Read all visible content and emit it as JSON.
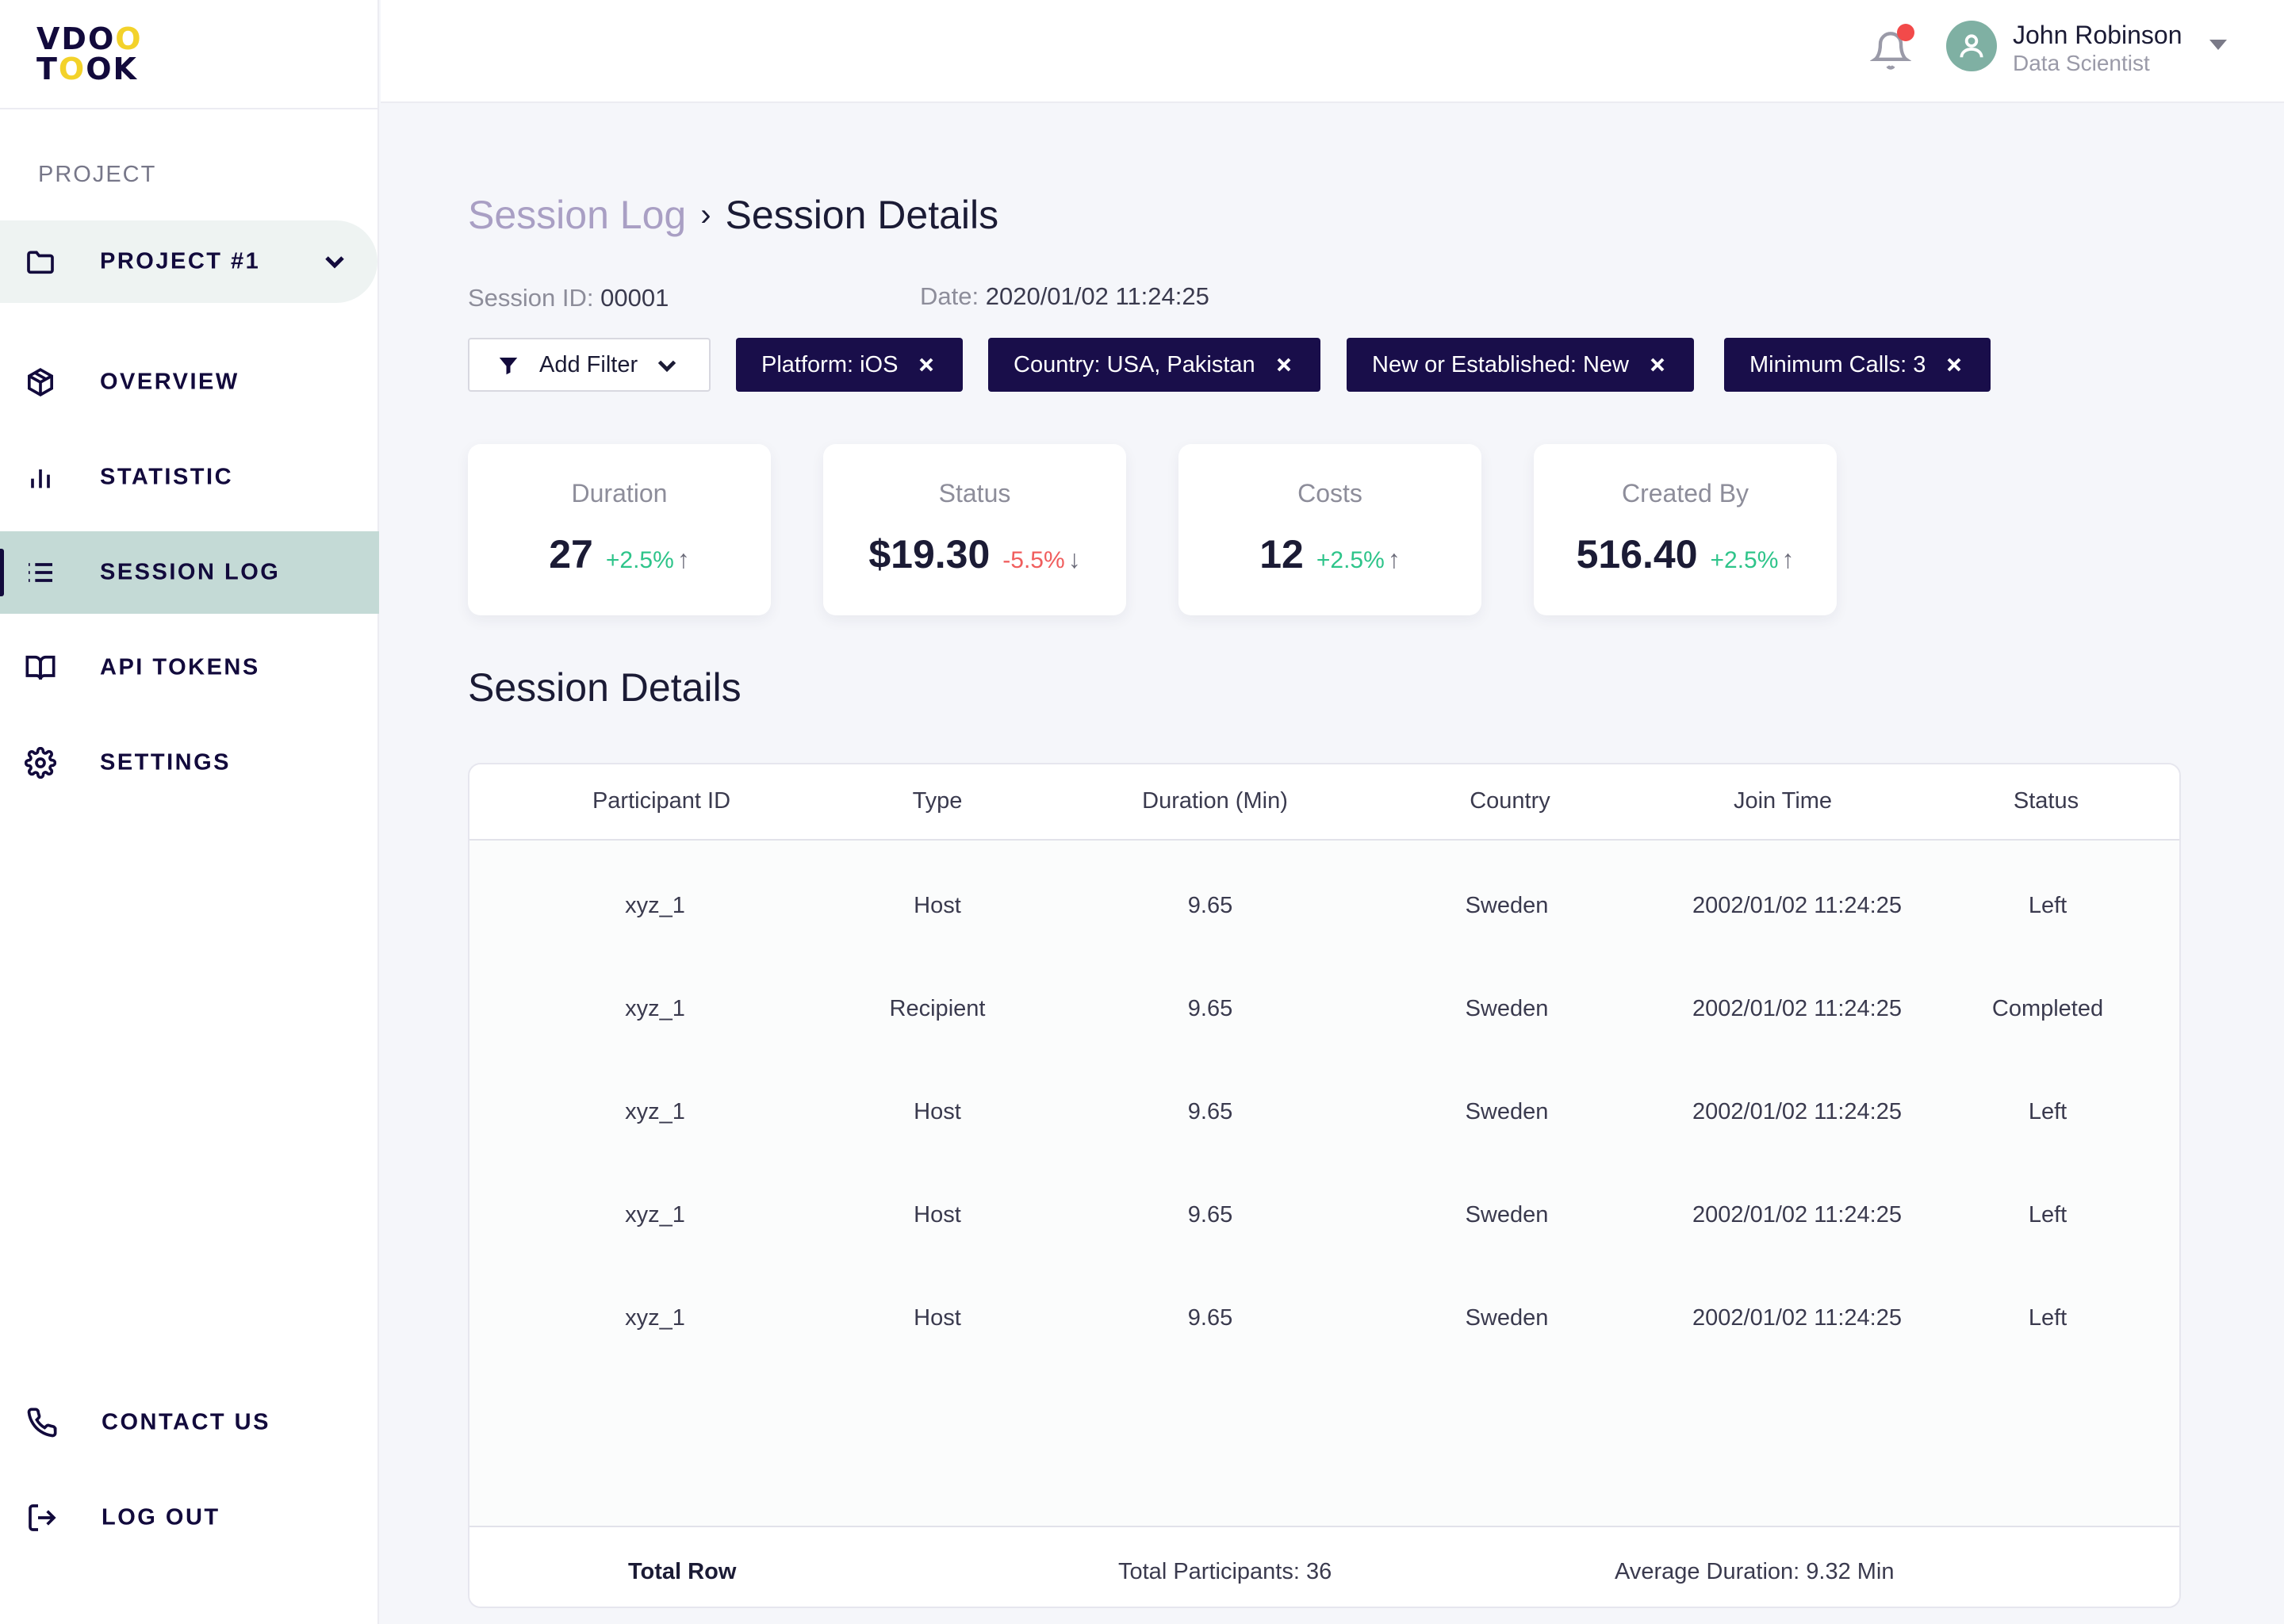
{
  "brand": {
    "line1": "VDO",
    "line1_tail": "O",
    "line2_a": "T",
    "line2_b": "O",
    "line2_c": "OK"
  },
  "sidebar": {
    "section_label": "PROJECT",
    "project": {
      "label": "PROJECT #1"
    },
    "items": [
      {
        "label": "OVERVIEW",
        "icon": "cube-icon"
      },
      {
        "label": "STATISTIC",
        "icon": "bar-chart-icon"
      },
      {
        "label": "SESSION LOG",
        "icon": "list-icon",
        "active": true
      },
      {
        "label": "API TOKENS",
        "icon": "book-icon"
      },
      {
        "label": "SETTINGS",
        "icon": "gear-icon"
      }
    ],
    "bottom_items": [
      {
        "label": "CONTACT US",
        "icon": "phone-icon"
      },
      {
        "label": "LOG OUT",
        "icon": "logout-icon"
      }
    ]
  },
  "topbar": {
    "user_name": "John Robinson",
    "user_role": "Data Scientist",
    "notification_dot_color": "#f24a4a"
  },
  "breadcrumb": {
    "parent": "Session Log",
    "separator": "›",
    "current": "Session Details"
  },
  "session": {
    "id_label": "Session ID:",
    "id_value": "00001",
    "date_label": "Date:",
    "date_value": "2020/01/02 11:24:25"
  },
  "filters": {
    "add_label": "Add Filter",
    "chips": [
      "Platform: iOS",
      "Country: USA, Pakistan",
      "New or Established: New",
      "Minimum Calls: 3"
    ]
  },
  "stats": [
    {
      "label": "Duration",
      "value": "27",
      "change": "+2.5%",
      "direction": "up"
    },
    {
      "label": "Status",
      "value": "$19.30",
      "change": "-5.5%",
      "direction": "down"
    },
    {
      "label": "Costs",
      "value": "12",
      "change": "+2.5%",
      "direction": "up"
    },
    {
      "label": "Created By",
      "value": "516.40",
      "change": "+2.5%",
      "direction": "up"
    }
  ],
  "details": {
    "title": "Session Details",
    "columns": [
      "Participant ID",
      "Type",
      "Duration (Min)",
      "Country",
      "Join Time",
      "Status"
    ],
    "rows": [
      [
        "xyz_1",
        "Host",
        "9.65",
        "Sweden",
        "2002/01/02 11:24:25",
        "Left"
      ],
      [
        "xyz_1",
        "Recipient",
        "9.65",
        "Sweden",
        "2002/01/02 11:24:25",
        "Completed"
      ],
      [
        "xyz_1",
        "Host",
        "9.65",
        "Sweden",
        "2002/01/02 11:24:25",
        "Left"
      ],
      [
        "xyz_1",
        "Host",
        "9.65",
        "Sweden",
        "2002/01/02 11:24:25",
        "Left"
      ],
      [
        "xyz_1",
        "Host",
        "9.65",
        "Sweden",
        "2002/01/02 11:24:25",
        "Left"
      ]
    ],
    "footer": {
      "label": "Total Row",
      "participants": "Total Participants: 36",
      "average": "Average Duration: 9.32 Min"
    }
  }
}
